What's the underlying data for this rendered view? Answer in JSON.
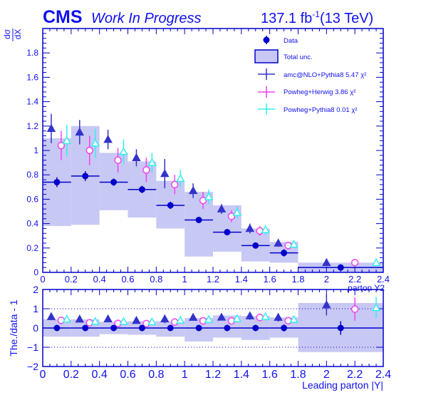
{
  "header": {
    "experiment": "CMS",
    "status": "Work In Progress",
    "lumi_prefix": "137.1 fb",
    "lumi_exp": "-1",
    "lumi_suffix": "(13 TeV)"
  },
  "colors": {
    "text": "#1010ee",
    "data": "#0000cc",
    "band": "#c8c8f4",
    "amc": "#3333cc",
    "powheg_herwig": "#ee44ee",
    "powheg_pythia": "#33eeee"
  },
  "chart_data": [
    {
      "type": "scatter",
      "panel": "main",
      "ylabel_num": "dσ",
      "ylabel_den": "dX",
      "xlabel_partial": "parton Y2",
      "xlim": [
        0,
        2.4
      ],
      "ylim": [
        0,
        2.0
      ],
      "x_ticks": [
        "0",
        "0.2",
        "0.4",
        "0.6",
        "0.8",
        "1",
        "1.2",
        "1.4",
        "1.6",
        "1.8",
        "2",
        "2.2",
        "2.4"
      ],
      "y_ticks": [
        "0",
        "0.2",
        "0.4",
        "0.6",
        "0.8",
        "1",
        "1.2",
        "1.4",
        "1.6",
        "1.8"
      ],
      "legend": {
        "data": "Data",
        "total_unc": "Total unc.",
        "amc": "amc@NLO+Pythia8 5.47 χ²",
        "powheg_herwig": "Powheg+Herwig 3.86 χ²",
        "powheg_pythia": "Powheg+Pythia8 0.01 χ²"
      },
      "bins": [
        [
          0,
          0.2
        ],
        [
          0.2,
          0.4
        ],
        [
          0.4,
          0.6
        ],
        [
          0.6,
          0.8
        ],
        [
          0.8,
          1.0
        ],
        [
          1.0,
          1.2
        ],
        [
          1.2,
          1.4
        ],
        [
          1.4,
          1.6
        ],
        [
          1.6,
          1.8
        ],
        [
          1.8,
          2.4
        ]
      ],
      "data": {
        "x": [
          0.1,
          0.3,
          0.5,
          0.7,
          0.9,
          1.1,
          1.3,
          1.5,
          1.7,
          2.1
        ],
        "y": [
          0.74,
          0.79,
          0.74,
          0.68,
          0.55,
          0.43,
          0.33,
          0.22,
          0.16,
          0.04
        ],
        "yerr": [
          0.04,
          0.04,
          0.03,
          0.03,
          0.03,
          0.02,
          0.02,
          0.02,
          0.03,
          0.01
        ]
      },
      "total_unc": {
        "low": [
          0.38,
          0.39,
          0.51,
          0.45,
          0.36,
          0.13,
          0.17,
          0.09,
          0.08,
          0.0
        ],
        "high": [
          1.1,
          1.2,
          0.98,
          0.91,
          0.75,
          0.66,
          0.55,
          0.36,
          0.25,
          0.08
        ]
      },
      "amc": {
        "x": [
          0.06,
          0.26,
          0.46,
          0.66,
          0.86,
          1.06,
          1.26,
          1.46,
          1.66,
          2.0
        ],
        "y": [
          1.18,
          1.15,
          1.09,
          0.94,
          0.81,
          0.67,
          0.52,
          0.36,
          0.24,
          0.08
        ],
        "yerr": [
          0.12,
          0.1,
          0.08,
          0.07,
          0.12,
          0.06,
          0.04,
          0.04,
          0.03,
          0.02
        ]
      },
      "powheg_herwig": {
        "x": [
          0.13,
          0.33,
          0.53,
          0.73,
          0.93,
          1.13,
          1.33,
          1.53,
          1.73,
          2.2
        ],
        "y": [
          1.04,
          1.0,
          0.92,
          0.84,
          0.72,
          0.59,
          0.46,
          0.34,
          0.22,
          0.08
        ],
        "yerr": [
          0.12,
          0.12,
          0.1,
          0.1,
          0.08,
          0.07,
          0.05,
          0.04,
          0.03,
          0.02
        ]
      },
      "powheg_pythia": {
        "x": [
          0.17,
          0.37,
          0.57,
          0.77,
          0.97,
          1.17,
          1.37,
          1.57,
          1.77,
          2.35
        ],
        "y": [
          1.08,
          1.06,
          0.99,
          0.9,
          0.77,
          0.62,
          0.49,
          0.35,
          0.23,
          0.08
        ],
        "yerr": [
          0.13,
          0.12,
          0.1,
          0.08,
          0.07,
          0.06,
          0.05,
          0.04,
          0.03,
          0.02
        ]
      }
    },
    {
      "type": "scatter",
      "panel": "ratio",
      "ylabel": "The./data - 1",
      "xlabel": "Leading parton |Y|",
      "xlim": [
        0,
        2.4
      ],
      "ylim": [
        -2,
        2
      ],
      "x_ticks": [
        "0",
        "0.2",
        "0.4",
        "0.6",
        "0.8",
        "1",
        "1.2",
        "1.4",
        "1.6",
        "1.8",
        "2",
        "2.2",
        "2.4"
      ],
      "y_ticks": [
        "−2",
        "−1",
        "0",
        "1",
        "2"
      ],
      "dotted_lines": [
        -1,
        1
      ],
      "total_unc": {
        "low": [
          -0.45,
          -0.45,
          -0.32,
          -0.35,
          -0.45,
          -0.7,
          -0.5,
          -0.62,
          -0.5,
          -1.25
        ],
        "high": [
          0.45,
          0.45,
          0.32,
          0.35,
          0.35,
          0.52,
          0.65,
          0.62,
          0.55,
          1.3
        ]
      },
      "data": {
        "y": [
          0,
          0,
          0,
          0,
          0,
          0,
          0,
          0,
          0,
          0
        ],
        "yerr": [
          0.05,
          0.05,
          0.04,
          0.04,
          0.05,
          0.05,
          0.06,
          0.08,
          0.18,
          0.35
        ]
      },
      "amc": {
        "y": [
          0.59,
          0.46,
          0.47,
          0.39,
          0.47,
          0.55,
          0.56,
          0.63,
          0.55,
          1.2
        ],
        "yerr": [
          0.18,
          0.15,
          0.12,
          0.12,
          0.22,
          0.15,
          0.15,
          0.2,
          0.22,
          0.55
        ]
      },
      "powheg_herwig": {
        "y": [
          0.4,
          0.27,
          0.24,
          0.23,
          0.31,
          0.37,
          0.37,
          0.55,
          0.38,
          0.98
        ],
        "yerr": [
          0.17,
          0.16,
          0.14,
          0.15,
          0.15,
          0.18,
          0.17,
          0.2,
          0.2,
          0.6
        ]
      },
      "powheg_pythia": {
        "y": [
          0.46,
          0.34,
          0.34,
          0.32,
          0.4,
          0.44,
          0.48,
          0.59,
          0.44,
          1.05
        ],
        "yerr": [
          0.17,
          0.16,
          0.14,
          0.13,
          0.14,
          0.15,
          0.17,
          0.2,
          0.2,
          0.55
        ]
      }
    }
  ]
}
